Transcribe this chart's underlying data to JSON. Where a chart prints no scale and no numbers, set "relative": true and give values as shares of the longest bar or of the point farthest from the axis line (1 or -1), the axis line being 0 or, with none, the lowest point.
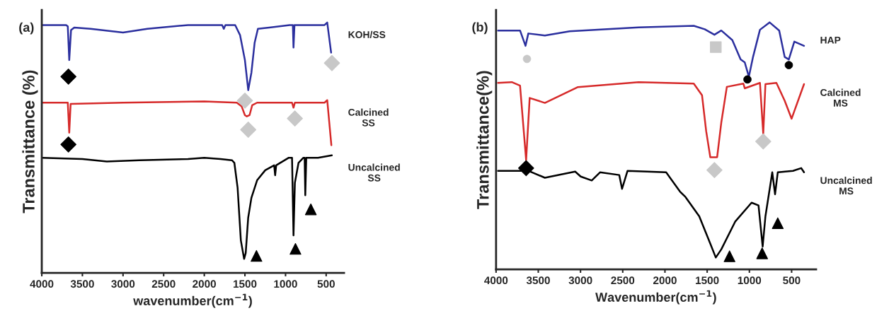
{
  "chart_data": [
    {
      "type": "line",
      "relative": true,
      "xlabel": "wavenumber(cm$^{−1}$)",
      "ylabel": "Transmittance (%)",
      "annotations": [
        "(a)"
      ],
      "xlim": [
        4000,
        280
      ],
      "xticks": [
        4000,
        3500,
        3000,
        2500,
        2000,
        1500,
        1000,
        500
      ],
      "legend": false,
      "grid": false,
      "series": [
        {
          "name": "KOH/SS",
          "color": "#2b2f9e",
          "x": [
            4000,
            3700,
            3680,
            3662,
            3640,
            3600,
            3400,
            3000,
            2700,
            2200,
            2000,
            1780,
            1760,
            1740,
            1620,
            1560,
            1500,
            1459,
            1420,
            1380,
            1340,
            1200,
            950,
            910,
            902,
            890,
            700,
            520,
            487,
            439
          ],
          "values": [
            0.99,
            0.99,
            0.985,
            0.85,
            0.97,
            0.98,
            0.975,
            0.96,
            0.975,
            0.99,
            0.99,
            0.99,
            0.975,
            0.99,
            0.99,
            0.95,
            0.85,
            0.73,
            0.8,
            0.92,
            0.975,
            0.98,
            0.99,
            0.99,
            0.9,
            0.99,
            0.99,
            0.99,
            1.0,
            0.88
          ]
        },
        {
          "name": "Calcined\nSS",
          "color": "#d62a2a",
          "x": [
            4000,
            3700,
            3680,
            3662,
            3645,
            3000,
            2000,
            1600,
            1540,
            1500,
            1476,
            1443,
            1410,
            1350,
            920,
            902,
            885,
            520,
            487,
            436
          ],
          "values": [
            0.68,
            0.68,
            0.68,
            0.56,
            0.675,
            0.68,
            0.685,
            0.68,
            0.665,
            0.63,
            0.625,
            0.63,
            0.67,
            0.68,
            0.68,
            0.66,
            0.68,
            0.68,
            0.69,
            0.51
          ]
        },
        {
          "name": "Uncalcined\nSS",
          "color": "#000000",
          "x": [
            4000,
            3500,
            3200,
            2800,
            2200,
            2000,
            1800,
            1660,
            1630,
            1590,
            1550,
            1510,
            1490,
            1460,
            1420,
            1350,
            1250,
            1140,
            1128,
            1115,
            960,
            920,
            902,
            885,
            840,
            780,
            765,
            757,
            745,
            600,
            430
          ],
          "values": [
            0.46,
            0.455,
            0.445,
            0.45,
            0.455,
            0.46,
            0.455,
            0.45,
            0.44,
            0.34,
            0.13,
            0.056,
            0.08,
            0.22,
            0.3,
            0.37,
            0.41,
            0.43,
            0.39,
            0.43,
            0.46,
            0.46,
            0.15,
            0.36,
            0.44,
            0.46,
            0.46,
            0.31,
            0.46,
            0.46,
            0.47
          ]
        },
        {
          "type": "scatter",
          "marker": "diamond",
          "color": "#000000",
          "x": [
            3672,
            3672
          ],
          "values": [
            0.784,
            0.513
          ]
        },
        {
          "type": "scatter",
          "marker": "diamond",
          "color": "#c8c8c8",
          "x": [
            1500,
            1459,
            885,
            429
          ],
          "values": [
            0.688,
            0.572,
            0.617,
            0.838
          ]
        },
        {
          "type": "scatter",
          "marker": "triangle",
          "color": "#000000",
          "x": [
            1358,
            878,
            689
          ],
          "values": [
            0.068,
            0.096,
            0.254
          ]
        }
      ]
    },
    {
      "type": "line",
      "relative": true,
      "xlabel": "Wavenumber(cm$^{−1}$)",
      "ylabel": "Transmittance(%)",
      "annotations": [
        "(b)"
      ],
      "xlim": [
        4000,
        210
      ],
      "xticks": [
        4000,
        3500,
        3000,
        2500,
        2000,
        1500,
        1000,
        500
      ],
      "legend": false,
      "grid": false,
      "series": [
        {
          "name": "HAP",
          "color": "#2b2f9e",
          "x": [
            3977,
            3716,
            3651,
            3618,
            3422,
            3128,
            2312,
            1659,
            1529,
            1414,
            1333,
            1202,
            1104,
            1055,
            1006,
            957,
            875,
            761,
            647,
            582,
            533,
            468,
            353
          ],
          "values": [
            0.967,
            0.967,
            0.905,
            0.955,
            0.947,
            0.964,
            0.98,
            0.986,
            0.972,
            0.95,
            0.967,
            0.928,
            0.85,
            0.838,
            0.78,
            0.86,
            0.97,
            1.0,
            0.967,
            0.86,
            0.85,
            0.922,
            0.905
          ]
        },
        {
          "name": "Calcined\nMS",
          "color": "#d62a2a",
          "x": [
            3977,
            3814,
            3716,
            3644,
            3602,
            3422,
            3030,
            2312,
            1659,
            1561,
            1512,
            1463,
            1382,
            1333,
            1267,
            1071,
            1055,
            875,
            836,
            810,
            680,
            582,
            500,
            353
          ],
          "values": [
            0.755,
            0.758,
            0.744,
            0.443,
            0.694,
            0.674,
            0.738,
            0.758,
            0.752,
            0.705,
            0.56,
            0.454,
            0.454,
            0.594,
            0.739,
            0.752,
            0.733,
            0.755,
            0.549,
            0.75,
            0.755,
            0.683,
            0.61,
            0.75
          ]
        },
        {
          "name": "Uncalcined\nMS",
          "color": "#000000",
          "x": [
            3977,
            3618,
            3422,
            3063,
            2998,
            2867,
            2769,
            2541,
            2508,
            2443,
            1986,
            1822,
            1757,
            1594,
            1463,
            1398,
            1333,
            1169,
            974,
            892,
            843,
            810,
            729,
            696,
            664,
            484,
            386,
            353
          ],
          "values": [
            0.399,
            0.399,
            0.371,
            0.396,
            0.376,
            0.36,
            0.393,
            0.382,
            0.326,
            0.399,
            0.393,
            0.315,
            0.293,
            0.215,
            0.104,
            0.048,
            0.081,
            0.193,
            0.27,
            0.259,
            0.092,
            0.215,
            0.393,
            0.304,
            0.393,
            0.399,
            0.41,
            0.393
          ]
        },
        {
          "type": "scatter",
          "marker": "circle",
          "color": "#c8c8c8",
          "x": [
            3634
          ],
          "values": [
            0.852
          ]
        },
        {
          "type": "scatter",
          "marker": "square",
          "color": "#c8c8c8",
          "x": [
            1398
          ],
          "values": [
            0.9
          ]
        },
        {
          "type": "scatter",
          "marker": "circle",
          "color": "#000000",
          "x": [
            1023,
            533
          ],
          "values": [
            0.769,
            0.827
          ]
        },
        {
          "type": "scatter",
          "marker": "diamond",
          "color": "#000000",
          "x": [
            3644
          ],
          "values": [
            0.41
          ]
        },
        {
          "type": "scatter",
          "marker": "diamond",
          "color": "#c8c8c8",
          "x": [
            1414,
            836
          ],
          "values": [
            0.402,
            0.518
          ]
        },
        {
          "type": "scatter",
          "marker": "triangle",
          "color": "#000000",
          "x": [
            1235,
            849,
            664
          ],
          "values": [
            0.053,
            0.065,
            0.187
          ]
        }
      ]
    }
  ]
}
